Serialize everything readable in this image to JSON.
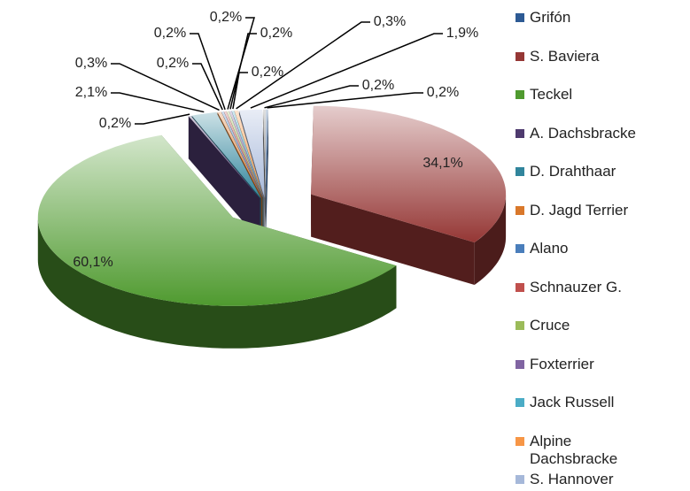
{
  "chart_data": {
    "type": "pie",
    "three_d": true,
    "exploded": true,
    "categories": [
      "Grifón",
      "S. Baviera",
      "Teckel",
      "A. Dachsbracke",
      "D. Drahthaar",
      "D. Jagd Terrier",
      "Alano",
      "Schnauzer G.",
      "Cruce",
      "Foxterrier",
      "Jack Russell",
      "Alpine Dachsbracke",
      "S. Hannover",
      null
    ],
    "values": [
      0.2,
      34.1,
      60.1,
      0.2,
      2.1,
      0.3,
      0.2,
      0.2,
      0.2,
      0.2,
      0.2,
      0.3,
      1.9,
      0.2
    ],
    "value_labels": [
      "0,2%",
      "34,1%",
      "60,1%",
      "0,2%",
      "2,1%",
      "0,3%",
      "0,2%",
      "0,2%",
      "0,2%",
      "0,2%",
      "0,2%",
      "0,3%",
      "1,9%",
      "0,2%"
    ],
    "colors": [
      "#2d5a94",
      "#953735",
      "#4f9a2f",
      "#4e3a6e",
      "#31859c",
      "#d9782b",
      "#4a7ebb",
      "#c0504d",
      "#9bbb59",
      "#8064a2",
      "#4bacc6",
      "#f79646",
      "#a6b8d9",
      "#7f7f7f"
    ],
    "legend": "right"
  }
}
